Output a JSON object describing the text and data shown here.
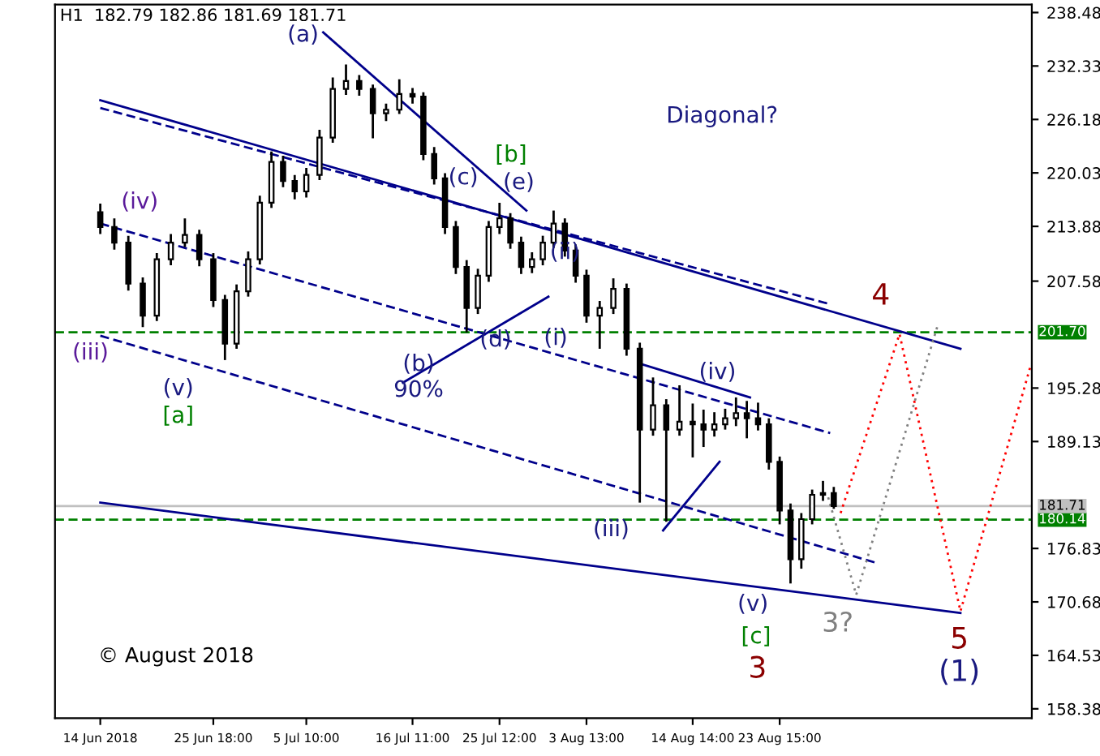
{
  "chart_data": {
    "type": "candlestick",
    "title": "H1  182.79 182.86 181.69 181.71",
    "x": [
      "2018-06-14T00:00",
      "2018-06-15T11:00",
      "2018-06-16T22:00",
      "2018-06-18T10:00",
      "2018-06-19T21:00",
      "2018-06-21T08:00",
      "2018-06-22T19:00",
      "2018-06-24T07:00",
      "2018-06-25T18:00",
      "2018-06-26T23:00",
      "2018-06-28T04:00",
      "2018-06-29T09:00",
      "2018-06-30T14:00",
      "2018-07-01T19:00",
      "2018-07-03T00:00",
      "2018-07-04T05:00",
      "2018-07-05T10:00",
      "2018-07-06T19:00",
      "2018-07-08T04:00",
      "2018-07-09T13:00",
      "2018-07-10T22:00",
      "2018-07-12T08:00",
      "2018-07-13T17:00",
      "2018-07-15T02:00",
      "2018-07-16T11:00",
      "2018-07-17T14:00",
      "2018-07-18T17:00",
      "2018-07-19T20:00",
      "2018-07-20T23:00",
      "2018-07-22T02:00",
      "2018-07-23T06:00",
      "2018-07-24T09:00",
      "2018-07-25T12:00",
      "2018-07-26T15:00",
      "2018-07-27T18:00",
      "2018-07-28T21:00",
      "2018-07-30T00:00",
      "2018-07-31T03:00",
      "2018-08-01T07:00",
      "2018-08-02T10:00",
      "2018-08-03T13:00",
      "2018-08-04T22:00",
      "2018-08-06T08:00",
      "2018-08-07T17:00",
      "2018-08-09T02:00",
      "2018-08-10T11:00",
      "2018-08-11T20:00",
      "2018-08-13T05:00",
      "2018-08-14T14:00",
      "2018-08-15T17:00",
      "2018-08-16T20:00",
      "2018-08-17T23:00",
      "2018-08-19T02:00",
      "2018-08-20T05:00",
      "2018-08-21T09:00",
      "2018-08-22T12:00",
      "2018-08-23T15:00",
      "2018-08-24T18:00",
      "2018-08-25T21:00",
      "2018-08-27T00:00",
      "2018-08-28T03:00",
      "2018-08-29T06:00"
    ],
    "ohlc": [
      [
        215.5,
        216.5,
        213.0,
        213.8
      ],
      [
        213.8,
        214.8,
        211.2,
        212.0
      ],
      [
        212.0,
        212.8,
        206.5,
        207.3
      ],
      [
        207.3,
        208.0,
        202.3,
        203.6
      ],
      [
        203.6,
        210.8,
        203.0,
        210.1
      ],
      [
        210.1,
        213.0,
        209.4,
        212.0
      ],
      [
        212.0,
        214.8,
        211.5,
        212.9
      ],
      [
        212.9,
        213.5,
        209.3,
        210.1
      ],
      [
        210.1,
        210.8,
        204.6,
        205.4
      ],
      [
        205.4,
        206.0,
        198.5,
        200.4
      ],
      [
        200.4,
        207.2,
        199.8,
        206.4
      ],
      [
        206.4,
        211.0,
        205.8,
        210.1
      ],
      [
        210.1,
        217.4,
        209.5,
        216.6
      ],
      [
        216.6,
        222.5,
        216.0,
        221.3
      ],
      [
        221.3,
        222.0,
        218.4,
        219.1
      ],
      [
        219.1,
        219.8,
        217.0,
        217.9
      ],
      [
        217.9,
        220.6,
        217.2,
        219.8
      ],
      [
        219.8,
        225.0,
        219.2,
        224.1
      ],
      [
        224.1,
        231.0,
        223.5,
        229.7
      ],
      [
        229.7,
        232.5,
        229.0,
        230.6
      ],
      [
        230.6,
        231.3,
        228.9,
        229.7
      ],
      [
        229.7,
        230.2,
        224.0,
        226.9
      ],
      [
        226.9,
        228.0,
        226.0,
        227.3
      ],
      [
        227.3,
        230.8,
        226.8,
        229.1
      ],
      [
        229.1,
        229.8,
        228.0,
        228.8
      ],
      [
        228.8,
        229.3,
        221.5,
        222.2
      ],
      [
        222.2,
        223.0,
        218.7,
        219.4
      ],
      [
        219.4,
        220.0,
        213.0,
        213.8
      ],
      [
        213.8,
        214.5,
        208.4,
        209.2
      ],
      [
        209.2,
        210.0,
        201.7,
        204.5
      ],
      [
        204.5,
        209.0,
        203.8,
        208.2
      ],
      [
        208.2,
        214.5,
        207.5,
        213.8
      ],
      [
        213.8,
        216.6,
        213.0,
        214.8
      ],
      [
        214.8,
        215.4,
        211.3,
        212.0
      ],
      [
        212.0,
        212.7,
        208.4,
        209.2
      ],
      [
        209.2,
        210.9,
        208.5,
        210.1
      ],
      [
        210.1,
        212.8,
        209.4,
        212.0
      ],
      [
        212.0,
        215.7,
        211.4,
        214.2
      ],
      [
        214.2,
        214.8,
        210.4,
        211.1
      ],
      [
        211.1,
        211.8,
        207.4,
        208.2
      ],
      [
        208.2,
        208.9,
        202.8,
        203.6
      ],
      [
        203.6,
        205.3,
        199.8,
        204.5
      ],
      [
        204.5,
        207.9,
        203.8,
        206.7
      ],
      [
        206.7,
        207.3,
        199.0,
        199.8
      ],
      [
        199.8,
        200.5,
        182.1,
        190.5
      ],
      [
        190.5,
        196.5,
        189.8,
        193.3
      ],
      [
        193.3,
        194.0,
        179.9,
        190.5
      ],
      [
        190.5,
        195.6,
        189.8,
        191.4
      ],
      [
        191.4,
        193.5,
        187.3,
        191.1
      ],
      [
        191.1,
        192.8,
        188.5,
        190.5
      ],
      [
        190.5,
        192.5,
        189.7,
        191.1
      ],
      [
        191.1,
        192.9,
        190.5,
        191.8
      ],
      [
        191.8,
        194.2,
        190.9,
        192.4
      ],
      [
        192.4,
        193.8,
        189.5,
        191.8
      ],
      [
        191.8,
        193.6,
        190.4,
        191.1
      ],
      [
        191.1,
        191.8,
        185.9,
        186.8
      ],
      [
        186.8,
        187.4,
        179.6,
        181.2
      ],
      [
        181.2,
        182.0,
        172.8,
        175.6
      ],
      [
        175.6,
        180.9,
        174.5,
        180.2
      ],
      [
        180.2,
        183.6,
        179.6,
        183.0
      ],
      [
        183.0,
        184.6,
        182.3,
        183.2
      ],
      [
        183.2,
        183.9,
        181.4,
        181.7
      ]
    ],
    "color": "#000000",
    "series": [
      {
        "type": "line",
        "color": "#00008b",
        "line_style": "solid",
        "x": [
          "2018-06-14T00:00",
          "2018-09-11T10:00"
        ],
        "values": [
          228.4,
          199.8
        ]
      },
      {
        "type": "line",
        "color": "#00008b",
        "line_style": "solid",
        "x": [
          "2018-06-14T00:00",
          "2018-09-11T10:00"
        ],
        "values": [
          182.1,
          169.4
        ]
      },
      {
        "type": "line",
        "color": "#00008b",
        "line_style": "dashed",
        "x": [
          "2018-06-14T00:00",
          "2018-08-28T23:00"
        ],
        "values": [
          227.5,
          204.9
        ]
      },
      {
        "type": "line",
        "color": "#00008b",
        "line_style": "dashed",
        "x": [
          "2018-06-14T00:00",
          "2018-08-28T21:00"
        ],
        "values": [
          214.2,
          190.1
        ]
      },
      {
        "type": "line",
        "color": "#00008b",
        "line_style": "dashed",
        "x": [
          "2018-06-14T00:00",
          "2018-09-02T14:00"
        ],
        "values": [
          201.3,
          175.2
        ]
      },
      {
        "type": "line",
        "color": "#00008b",
        "line_style": "solid",
        "x": [
          "2018-07-07T04:00",
          "2018-07-28T07:00"
        ],
        "values": [
          236.2,
          215.7
        ]
      },
      {
        "type": "line",
        "color": "#00008b",
        "line_style": "solid",
        "x": [
          "2018-07-15T11:00",
          "2018-07-30T14:00"
        ],
        "values": [
          195.9,
          205.8
        ]
      },
      {
        "type": "line",
        "color": "#00008b",
        "line_style": "solid",
        "x": [
          "2018-08-11T12:00",
          "2018-08-17T09:00"
        ],
        "values": [
          178.9,
          186.8
        ]
      },
      {
        "type": "line",
        "color": "#00008b",
        "line_style": "solid",
        "x": [
          "2018-08-09T09:00",
          "2018-08-20T13:00"
        ],
        "values": [
          198.0,
          194.2
        ]
      },
      {
        "type": "line",
        "color": "#ff0000",
        "line_style": "dotted",
        "x": [
          "2018-08-29T23:00",
          "2018-09-05T02:00",
          "2018-09-11T10:00",
          "2018-09-18T18:00"
        ],
        "values": [
          180.9,
          201.5,
          169.6,
          198.0
        ]
      },
      {
        "type": "line",
        "color": "#808080",
        "line_style": "dotted",
        "x": [
          "2018-08-28T16:00",
          "2018-08-31T14:00",
          "2018-09-09T00:00"
        ],
        "values": [
          182.7,
          171.5,
          202.3
        ]
      }
    ],
    "ref_lines": [
      {
        "axis": "y",
        "value": 201.7,
        "label": "201.70",
        "color": "#008000",
        "line_style": "dashed"
      },
      {
        "axis": "y",
        "value": 180.14,
        "label": "180.14",
        "color": "#008000",
        "line_style": "dashed"
      },
      {
        "axis": "y",
        "value": 181.71,
        "label": "181.71",
        "color": "#c0c0c0",
        "line_style": "solid"
      }
    ],
    "annotations": [
      "(a)",
      "(iv)",
      "(iii)",
      "(v)",
      "[a]",
      "(b)",
      "90%",
      "(c)",
      "(d)",
      "[b]",
      "(e)",
      "(i)",
      "(ii)",
      "(iii)",
      "(iv)",
      "(v)",
      "[c]",
      "3",
      "3?",
      "4",
      "5",
      "(1)",
      "Diagonal?",
      "© August 2018"
    ],
    "xlim": [
      "2018-06-09T07:00",
      "2018-09-18T20:00"
    ],
    "ylim": [
      157.3,
      239.4
    ],
    "xticks": [
      {
        "value": "2018-06-14T00:00",
        "label": "14 Jun 2018"
      },
      {
        "value": "2018-06-25T18:00",
        "label": "25 Jun 18:00"
      },
      {
        "value": "2018-07-05T10:00",
        "label": "5 Jul 10:00"
      },
      {
        "value": "2018-07-16T11:00",
        "label": "16 Jul 11:00"
      },
      {
        "value": "2018-07-25T12:00",
        "label": "25 Jul 12:00"
      },
      {
        "value": "2018-08-03T13:00",
        "label": "3 Aug 13:00"
      },
      {
        "value": "2018-08-14T14:00",
        "label": "14 Aug 14:00"
      },
      {
        "value": "2018-08-23T15:00",
        "label": "23 Aug 15:00"
      }
    ],
    "yticks": [
      238.48,
      232.33,
      226.18,
      220.03,
      213.88,
      207.58,
      195.28,
      189.13,
      176.83,
      170.68,
      164.53,
      158.38
    ],
    "grid": false,
    "legend": false
  }
}
